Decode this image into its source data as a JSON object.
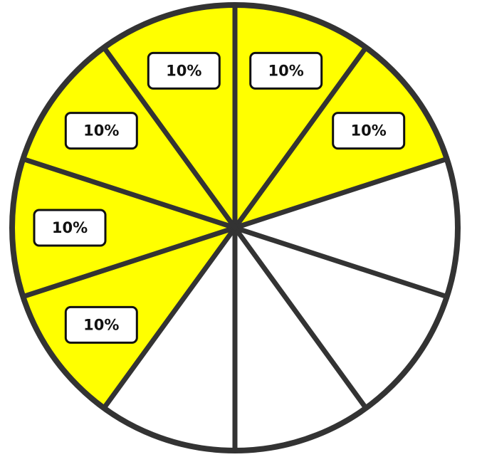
{
  "diagram": {
    "type": "fraction-circle",
    "slice_count": 10,
    "shaded_color": "#ffff00",
    "unshaded_color": "#ffffff",
    "outline_color": "#333333",
    "slices": [
      {
        "shaded": true,
        "label": "10%"
      },
      {
        "shaded": true,
        "label": "10%"
      },
      {
        "shaded": false,
        "label": ""
      },
      {
        "shaded": false,
        "label": ""
      },
      {
        "shaded": false,
        "label": ""
      },
      {
        "shaded": false,
        "label": ""
      },
      {
        "shaded": true,
        "label": "10%"
      },
      {
        "shaded": true,
        "label": "10%"
      },
      {
        "shaded": true,
        "label": "10%"
      },
      {
        "shaded": true,
        "label": "10%"
      }
    ]
  }
}
